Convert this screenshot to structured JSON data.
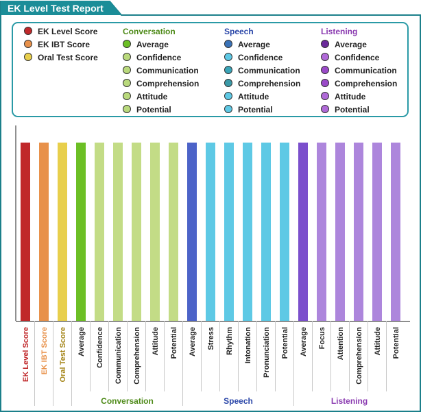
{
  "report": {
    "title": "EK Level Test Report"
  },
  "legend": {
    "scores": [
      {
        "label": "EK Level Score",
        "color": "#c0282a"
      },
      {
        "label": "EK IBT Score",
        "color": "#e8914a"
      },
      {
        "label": "Oral Test Score",
        "color": "#e8cf4c"
      }
    ],
    "groups": [
      {
        "title": "Conversation",
        "title_color": "#4e8a18",
        "items": [
          {
            "label": "Average",
            "color": "#6cbf25"
          },
          {
            "label": "Confidence",
            "color": "#b9d97c"
          },
          {
            "label": "Communication",
            "color": "#b9d97c"
          },
          {
            "label": "Comprehension",
            "color": "#b9d97c"
          },
          {
            "label": "Attitude",
            "color": "#b9d97c"
          },
          {
            "label": "Potential",
            "color": "#b9d97c"
          }
        ]
      },
      {
        "title": "Speech",
        "title_color": "#2a46a8",
        "items": [
          {
            "label": "Average",
            "color": "#3a73b8"
          },
          {
            "label": "Confidence",
            "color": "#5ec9e5"
          },
          {
            "label": "Communication",
            "color": "#3aa5b8"
          },
          {
            "label": "Comprehension",
            "color": "#3a9aa8"
          },
          {
            "label": "Attitude",
            "color": "#5ec9e5"
          },
          {
            "label": "Potential",
            "color": "#5ec9e5"
          }
        ]
      },
      {
        "title": "Listening",
        "title_color": "#8a3ab0",
        "items": [
          {
            "label": "Average",
            "color": "#6a2a9a"
          },
          {
            "label": "Confidence",
            "color": "#b06ad8"
          },
          {
            "label": "Communication",
            "color": "#9a4ac8"
          },
          {
            "label": "Comprehension",
            "color": "#9a4ac8"
          },
          {
            "label": "Attitude",
            "color": "#b06ad8"
          },
          {
            "label": "Potential",
            "color": "#b06ad8"
          }
        ]
      }
    ]
  },
  "chart_data": {
    "type": "bar",
    "title": "EK Level Test Report",
    "ylim": [
      0,
      100
    ],
    "grid": false,
    "categories": [
      "EK Level Score",
      "EK IBT Score",
      "Oral Test Score",
      "Average",
      "Confidence",
      "Communication",
      "Comprehension",
      "Attitude",
      "Potential",
      "Average",
      "Stress",
      "Rhythm",
      "Intonation",
      "Pronunciation",
      "Potential",
      "Average",
      "Focus",
      "Attention",
      "Comprehension",
      "Attitude",
      "Potential"
    ],
    "values": [
      100,
      100,
      100,
      100,
      100,
      100,
      100,
      100,
      100,
      100,
      100,
      100,
      100,
      100,
      100,
      100,
      100,
      100,
      100,
      100,
      100
    ],
    "colors": [
      "#c0282a",
      "#e8914a",
      "#e8cf4c",
      "#6cbf25",
      "#c3dc86",
      "#c3dc86",
      "#c3dc86",
      "#c3dc86",
      "#c3dc86",
      "#4c63c8",
      "#5ec9e5",
      "#5ec9e5",
      "#5ec9e5",
      "#5ec9e5",
      "#5ec9e5",
      "#7b4fcc",
      "#ad86dc",
      "#ad86dc",
      "#ad86dc",
      "#ad86dc",
      "#ad86dc"
    ],
    "label_colors": [
      "#c0282a",
      "#e8914a",
      "#a5861a",
      "#222222",
      "#222222",
      "#222222",
      "#222222",
      "#222222",
      "#222222",
      "#222222",
      "#222222",
      "#222222",
      "#222222",
      "#222222",
      "#222222",
      "#222222",
      "#222222",
      "#222222",
      "#222222",
      "#222222",
      "#222222"
    ],
    "groups": [
      {
        "name": "Conversation",
        "start": 3,
        "end": 8,
        "color": "#4e8a18"
      },
      {
        "name": "Speech",
        "start": 9,
        "end": 14,
        "color": "#2a46a8"
      },
      {
        "name": "Listening",
        "start": 15,
        "end": 20,
        "color": "#8a3ab0"
      }
    ]
  }
}
